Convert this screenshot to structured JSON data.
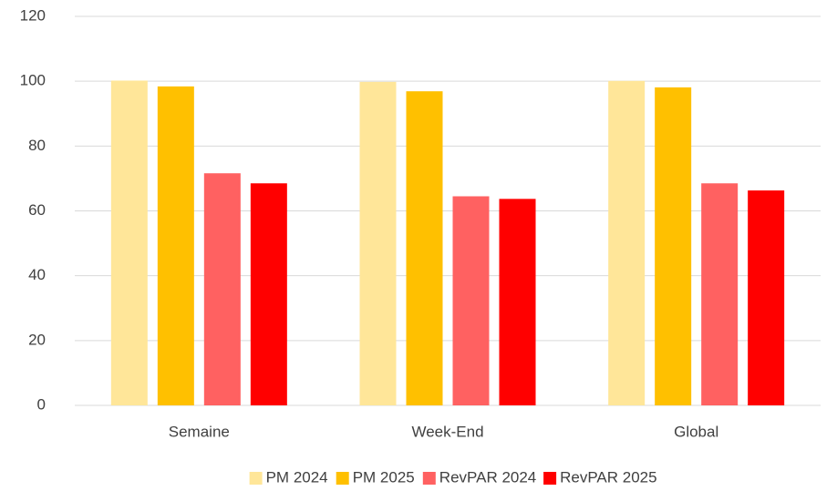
{
  "chart_data": {
    "type": "bar",
    "categories": [
      "Semaine",
      "Week-End",
      "Global"
    ],
    "series": [
      {
        "name": "PM 2024",
        "color": "#FFE699",
        "values": [
          100.2,
          99.8,
          100.1
        ]
      },
      {
        "name": "PM 2025",
        "color": "#FFC000",
        "values": [
          98.4,
          96.9,
          98.1
        ]
      },
      {
        "name": "RevPAR 2024",
        "color": "#FF6161",
        "values": [
          71.6,
          64.5,
          68.5
        ]
      },
      {
        "name": "RevPAR 2025",
        "color": "#FF0000",
        "values": [
          68.5,
          63.7,
          66.3
        ]
      }
    ],
    "ylim": [
      0,
      120
    ],
    "yticks": [
      0,
      20,
      40,
      60,
      80,
      100,
      120
    ],
    "grid": true,
    "legend": "bottom"
  }
}
